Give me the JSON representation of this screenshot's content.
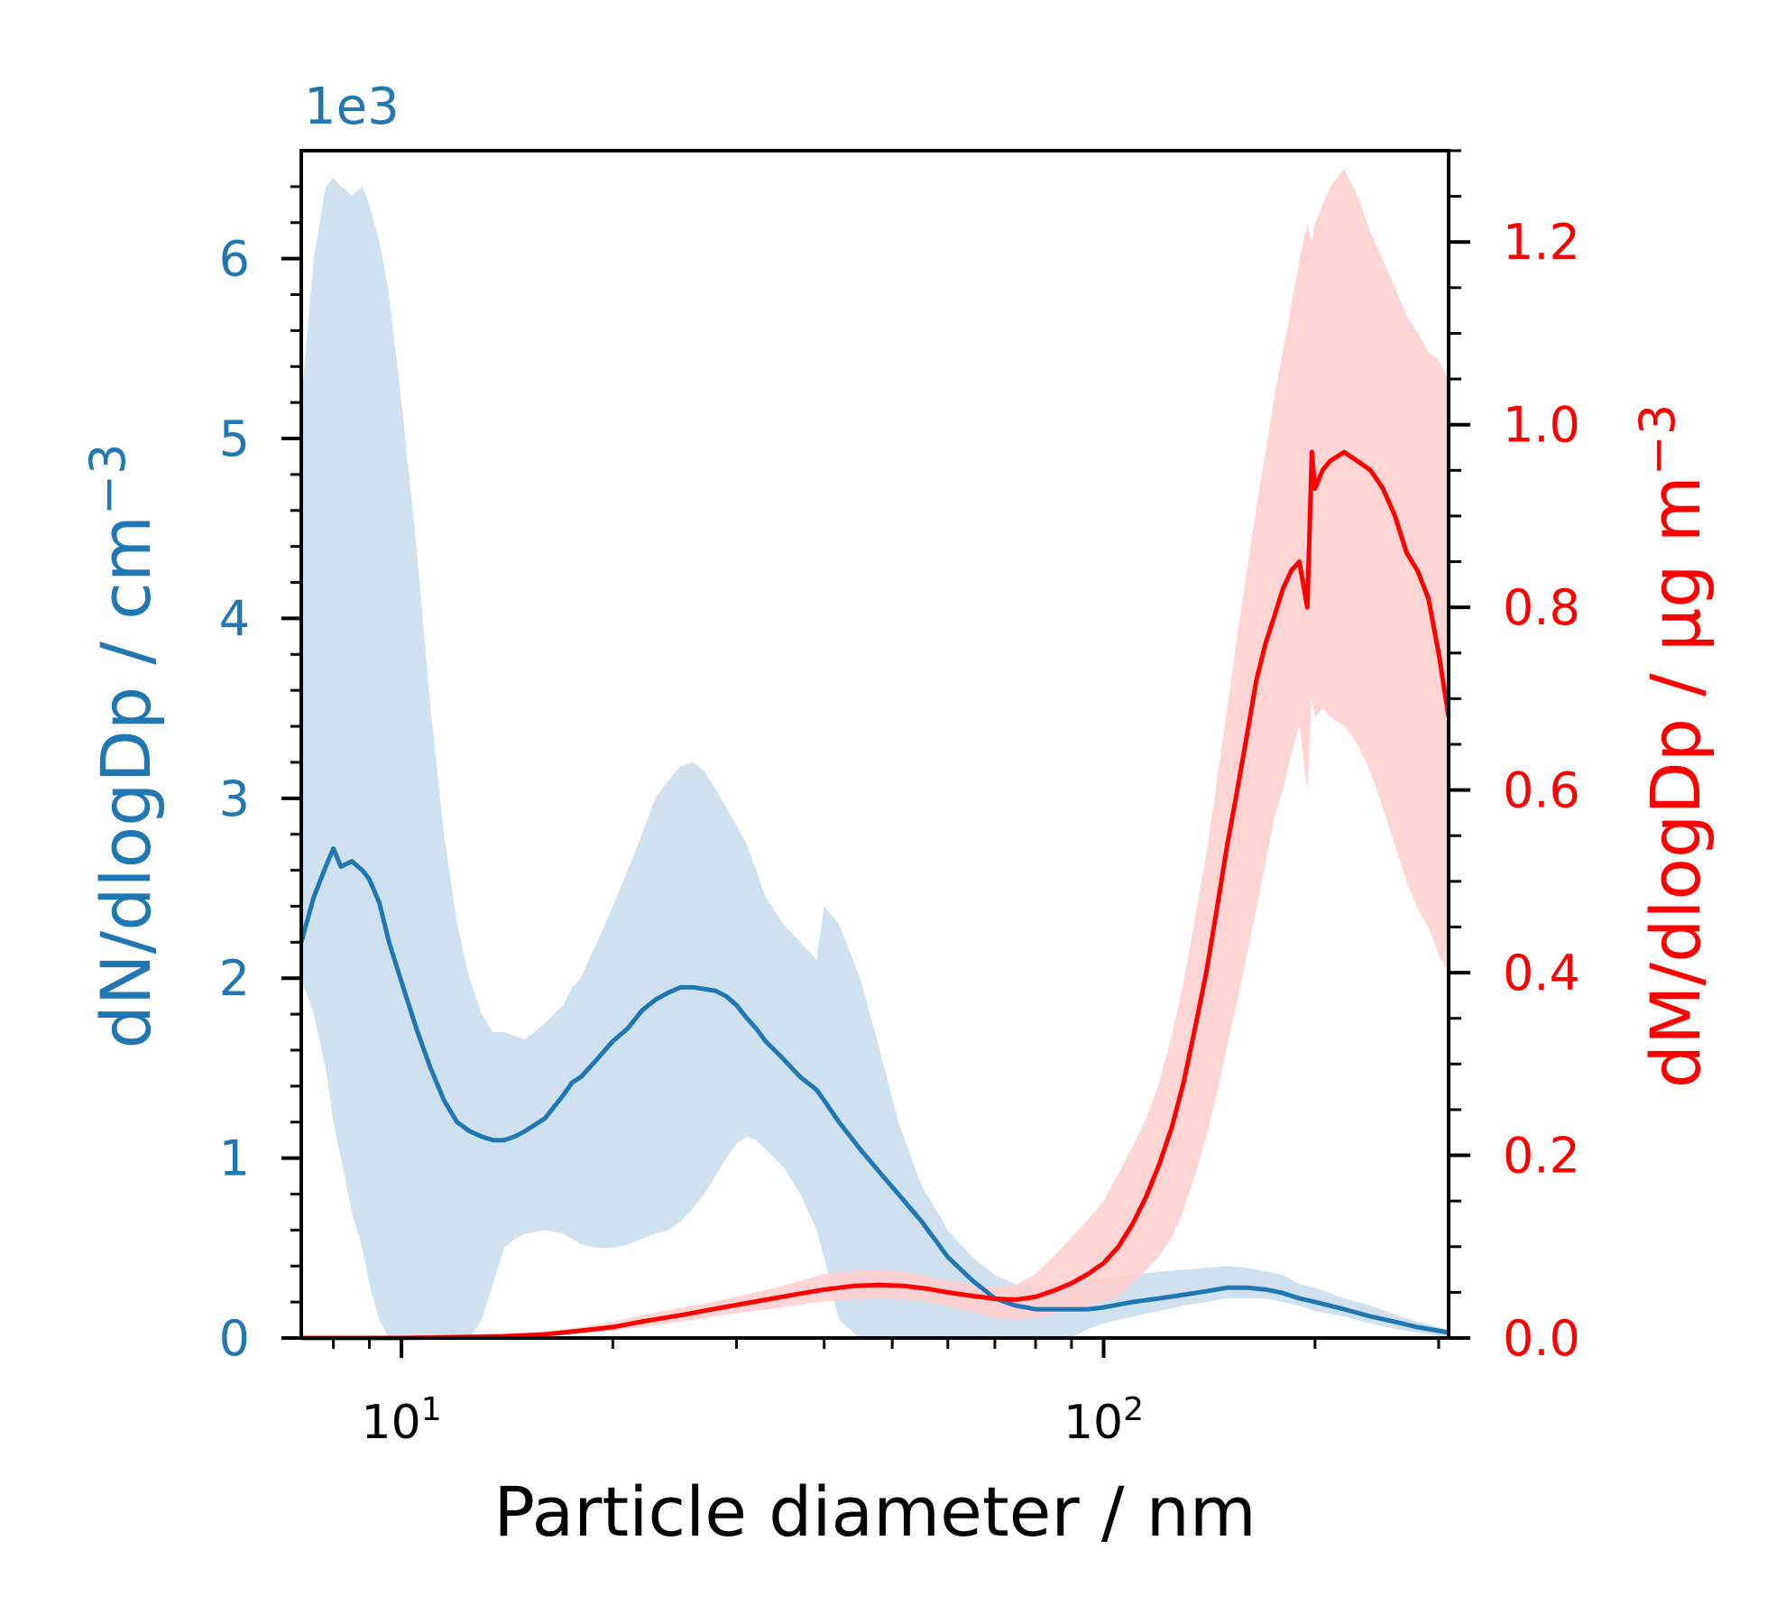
{
  "chart_data": {
    "type": "line",
    "xlabel": "Particle diameter / nm",
    "x_scale": "log",
    "xlim": [
      7.2,
      310
    ],
    "x_ticks": [
      {
        "value": 10,
        "label": "10",
        "exp": "1"
      },
      {
        "value": 100,
        "label": "10",
        "exp": "2"
      }
    ],
    "left_axis": {
      "label": "dN/dlogDp / cm",
      "label_exp": "−3",
      "offset_text": "1e3",
      "color": "#1f77b4",
      "ylim": [
        0,
        6.6
      ],
      "ticks": [
        "0",
        "1",
        "2",
        "3",
        "4",
        "5",
        "6"
      ]
    },
    "right_axis": {
      "label": "dM/dlogDp / μg m",
      "label_exp": "−3",
      "color": "#ff0000",
      "ylim": [
        0,
        1.3
      ],
      "ticks": [
        "0.0",
        "0.2",
        "0.4",
        "0.6",
        "0.8",
        "1.0",
        "1.2"
      ]
    },
    "series": [
      {
        "axis": "left",
        "color": "#1f77b4",
        "band_color": "#cfe0ee",
        "x": [
          7.2,
          7.5,
          7.8,
          8.0,
          8.2,
          8.5,
          8.8,
          9.0,
          9.3,
          9.6,
          10.0,
          10.5,
          11.0,
          11.5,
          12.0,
          12.5,
          13.0,
          13.5,
          14.0,
          14.5,
          15.0,
          16.0,
          17.0,
          17.5,
          18.0,
          19.0,
          20.0,
          21.0,
          22.0,
          23.0,
          24.0,
          25.0,
          26.0,
          27.0,
          28.0,
          29.0,
          30.0,
          31.0,
          32.0,
          33.0,
          35.0,
          37.0,
          39.0,
          40.0,
          42.0,
          45.0,
          48.0,
          51.0,
          55.0,
          60.0,
          65.0,
          70.0,
          75.0,
          80.0,
          85.0,
          90.0,
          95.0,
          100.0,
          110.0,
          120.0,
          130.0,
          140.0,
          150.0,
          160.0,
          170.0,
          180.0,
          190.0,
          200.0,
          220.0,
          240.0,
          260.0,
          280.0,
          300.0,
          310.0
        ],
        "values": [
          2.2,
          2.45,
          2.62,
          2.72,
          2.62,
          2.65,
          2.6,
          2.55,
          2.42,
          2.2,
          1.98,
          1.72,
          1.5,
          1.32,
          1.2,
          1.15,
          1.12,
          1.1,
          1.1,
          1.12,
          1.15,
          1.22,
          1.35,
          1.42,
          1.45,
          1.55,
          1.65,
          1.72,
          1.82,
          1.88,
          1.92,
          1.95,
          1.95,
          1.94,
          1.93,
          1.9,
          1.85,
          1.78,
          1.72,
          1.65,
          1.55,
          1.45,
          1.38,
          1.32,
          1.2,
          1.05,
          0.92,
          0.8,
          0.65,
          0.45,
          0.32,
          0.22,
          0.18,
          0.16,
          0.16,
          0.16,
          0.16,
          0.17,
          0.2,
          0.22,
          0.24,
          0.26,
          0.28,
          0.28,
          0.27,
          0.25,
          0.22,
          0.2,
          0.16,
          0.12,
          0.09,
          0.06,
          0.04,
          0.03
        ],
        "lower": [
          2.0,
          1.8,
          1.5,
          1.2,
          1.0,
          0.7,
          0.5,
          0.3,
          0.1,
          0.0,
          0.0,
          0.0,
          0.0,
          0.0,
          0.0,
          0.0,
          0.1,
          0.3,
          0.5,
          0.55,
          0.58,
          0.6,
          0.58,
          0.55,
          0.52,
          0.5,
          0.5,
          0.52,
          0.55,
          0.58,
          0.6,
          0.65,
          0.72,
          0.8,
          0.9,
          1.0,
          1.08,
          1.12,
          1.1,
          1.05,
          0.95,
          0.8,
          0.6,
          0.45,
          0.1,
          0.0,
          0.0,
          0.0,
          0.0,
          0.0,
          0.0,
          0.0,
          0.0,
          0.0,
          0.0,
          0.0,
          0.05,
          0.08,
          0.12,
          0.15,
          0.18,
          0.2,
          0.22,
          0.22,
          0.22,
          0.2,
          0.18,
          0.15,
          0.12,
          0.08,
          0.05,
          0.03,
          0.01,
          0.0
        ],
        "upper": [
          5.2,
          6.0,
          6.4,
          6.45,
          6.4,
          6.35,
          6.4,
          6.3,
          6.1,
          5.8,
          5.2,
          4.4,
          3.5,
          2.8,
          2.3,
          2.0,
          1.8,
          1.7,
          1.7,
          1.68,
          1.66,
          1.75,
          1.85,
          1.95,
          2.0,
          2.2,
          2.4,
          2.6,
          2.8,
          3.0,
          3.1,
          3.18,
          3.2,
          3.15,
          3.05,
          2.95,
          2.85,
          2.75,
          2.6,
          2.45,
          2.3,
          2.2,
          2.1,
          2.4,
          2.3,
          2.0,
          1.6,
          1.2,
          0.85,
          0.6,
          0.45,
          0.35,
          0.3,
          0.28,
          0.3,
          0.3,
          0.32,
          0.33,
          0.35,
          0.37,
          0.38,
          0.39,
          0.4,
          0.39,
          0.37,
          0.35,
          0.3,
          0.28,
          0.22,
          0.18,
          0.13,
          0.09,
          0.06,
          0.05
        ]
      },
      {
        "axis": "right",
        "color": "#ff0000",
        "band_color": "#ffcccc",
        "x": [
          7.2,
          10.0,
          12.0,
          14.0,
          16.0,
          18.0,
          20.0,
          22.0,
          25.0,
          28.0,
          32.0,
          36.0,
          40.0,
          44.0,
          48.0,
          52.0,
          56.0,
          60.0,
          65.0,
          70.0,
          75.0,
          80.0,
          85.0,
          90.0,
          95.0,
          100.0,
          105.0,
          110.0,
          115.0,
          120.0,
          125.0,
          130.0,
          135.0,
          140.0,
          145.0,
          150.0,
          155.0,
          160.0,
          165.0,
          170.0,
          175.0,
          180.0,
          185.0,
          190.0,
          195.0,
          198.0,
          200.0,
          205.0,
          210.0,
          220.0,
          230.0,
          240.0,
          250.0,
          260.0,
          270.0,
          280.0,
          290.0,
          300.0,
          310.0
        ],
        "values": [
          0.0,
          0.0,
          0.001,
          0.002,
          0.004,
          0.008,
          0.012,
          0.018,
          0.025,
          0.032,
          0.04,
          0.047,
          0.053,
          0.057,
          0.058,
          0.057,
          0.054,
          0.05,
          0.046,
          0.043,
          0.042,
          0.045,
          0.052,
          0.06,
          0.07,
          0.082,
          0.1,
          0.125,
          0.155,
          0.19,
          0.23,
          0.28,
          0.34,
          0.4,
          0.47,
          0.54,
          0.6,
          0.66,
          0.72,
          0.76,
          0.79,
          0.82,
          0.84,
          0.85,
          0.8,
          0.97,
          0.93,
          0.95,
          0.96,
          0.97,
          0.96,
          0.95,
          0.93,
          0.9,
          0.86,
          0.84,
          0.81,
          0.75,
          0.68
        ],
        "lower": [
          0.0,
          0.0,
          0.0,
          0.001,
          0.002,
          0.005,
          0.008,
          0.012,
          0.018,
          0.024,
          0.03,
          0.035,
          0.04,
          0.042,
          0.043,
          0.042,
          0.04,
          0.035,
          0.028,
          0.022,
          0.02,
          0.022,
          0.026,
          0.03,
          0.035,
          0.04,
          0.045,
          0.06,
          0.075,
          0.09,
          0.11,
          0.14,
          0.18,
          0.22,
          0.27,
          0.32,
          0.37,
          0.42,
          0.47,
          0.52,
          0.57,
          0.6,
          0.64,
          0.67,
          0.6,
          0.7,
          0.68,
          0.69,
          0.68,
          0.67,
          0.65,
          0.62,
          0.58,
          0.54,
          0.5,
          0.47,
          0.45,
          0.42,
          0.4
        ],
        "upper": [
          0.0,
          0.0,
          0.002,
          0.004,
          0.007,
          0.012,
          0.018,
          0.025,
          0.033,
          0.04,
          0.05,
          0.06,
          0.07,
          0.074,
          0.075,
          0.073,
          0.068,
          0.063,
          0.058,
          0.055,
          0.058,
          0.07,
          0.09,
          0.11,
          0.13,
          0.15,
          0.18,
          0.21,
          0.24,
          0.28,
          0.33,
          0.39,
          0.46,
          0.53,
          0.61,
          0.69,
          0.77,
          0.84,
          0.91,
          0.97,
          1.03,
          1.08,
          1.13,
          1.18,
          1.22,
          1.2,
          1.22,
          1.24,
          1.26,
          1.28,
          1.25,
          1.21,
          1.18,
          1.15,
          1.12,
          1.1,
          1.08,
          1.07,
          1.05
        ]
      }
    ]
  }
}
